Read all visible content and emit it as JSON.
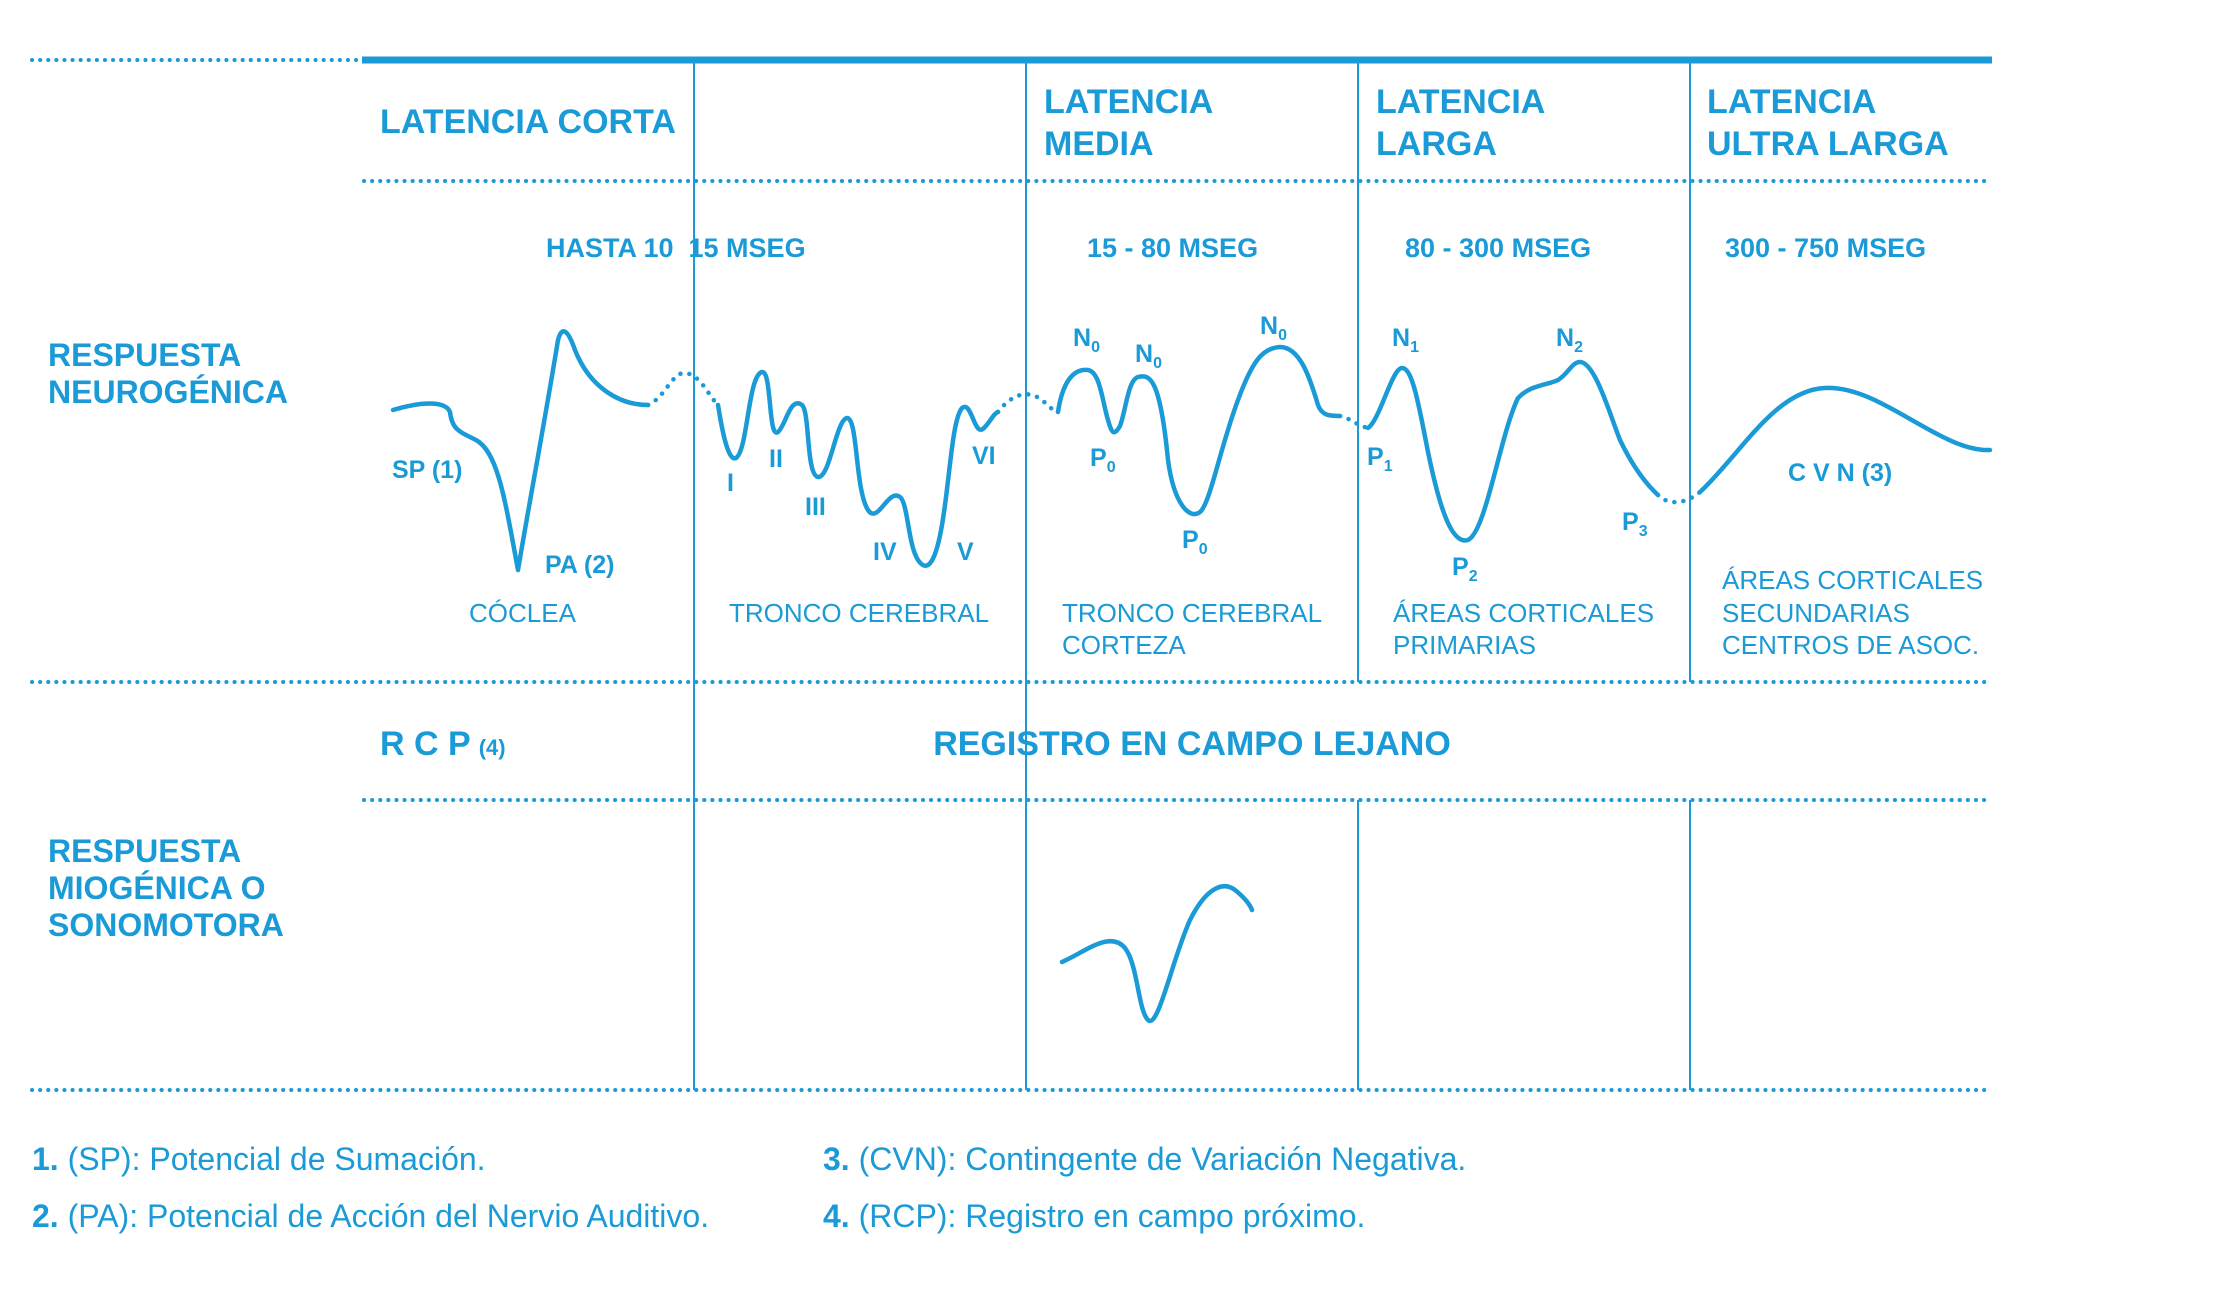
{
  "columns": {
    "latencia_corta": "LATENCIA CORTA",
    "latencia_media": [
      "LATENCIA",
      "MEDIA"
    ],
    "latencia_larga": [
      "LATENCIA",
      "LARGA"
    ],
    "latencia_ultra_larga": [
      "LATENCIA",
      "ULTRA LARGA"
    ]
  },
  "ranges": {
    "corta": "HASTA 10  15 MSEG",
    "media": "15 - 80 MSEG",
    "larga": "80 - 300 MSEG",
    "ultra": "300 - 750 MSEG"
  },
  "row_labels": {
    "neurogenica": [
      "RESPUESTA",
      "NEUROGÉNICA"
    ],
    "miogenica": [
      "RESPUESTA",
      "MIOGÉNICA O",
      "SONOMOTORA"
    ]
  },
  "wave_labels": {
    "sp": "SP (1)",
    "pa": "PA (2)",
    "i": "I",
    "ii": "II",
    "iii": "III",
    "iv": "IV",
    "v": "V",
    "vi": "VI",
    "n0_a": "N",
    "n0_b": "N",
    "n0_c": "N",
    "p0_a": "P",
    "p0_b": "P",
    "n1": "N",
    "n2": "N",
    "p1": "P",
    "p2": "P",
    "p3": "P",
    "cvn": "C V N (3)"
  },
  "wave_subscripts": {
    "n0_a": "0",
    "n0_b": "0",
    "n0_c": "0",
    "p0_a": "0",
    "p0_b": "0",
    "n1": "1",
    "n2": "2",
    "p1": "1",
    "p2": "2",
    "p3": "3"
  },
  "areas": {
    "coclea": "CÓCLEA",
    "tronco": "TRONCO CEREBRAL",
    "tronco_corteza": [
      "TRONCO CEREBRAL",
      "CORTEZA"
    ],
    "primarias": [
      "ÁREAS CORTICALES",
      "PRIMARIAS"
    ],
    "secundarias": [
      "ÁREAS CORTICALES",
      "SECUNDARIAS",
      "CENTROS DE ASOC."
    ]
  },
  "recording": {
    "rcp": "R C P",
    "rcp_note": "(4)",
    "campo_lejano": "REGISTRO EN CAMPO LEJANO"
  },
  "footnotes": [
    {
      "num": "1.",
      "text": " (SP): Potencial de Sumación."
    },
    {
      "num": "2.",
      "text": " (PA): Potencial de Acción del Nervio Auditivo."
    },
    {
      "num": "3.",
      "text": " (CVN): Contingente de Variación Negativa."
    },
    {
      "num": "4.",
      "text": " (RCP): Registro en campo próximo."
    }
  ],
  "colors": {
    "accent": "#1a9ad6"
  }
}
